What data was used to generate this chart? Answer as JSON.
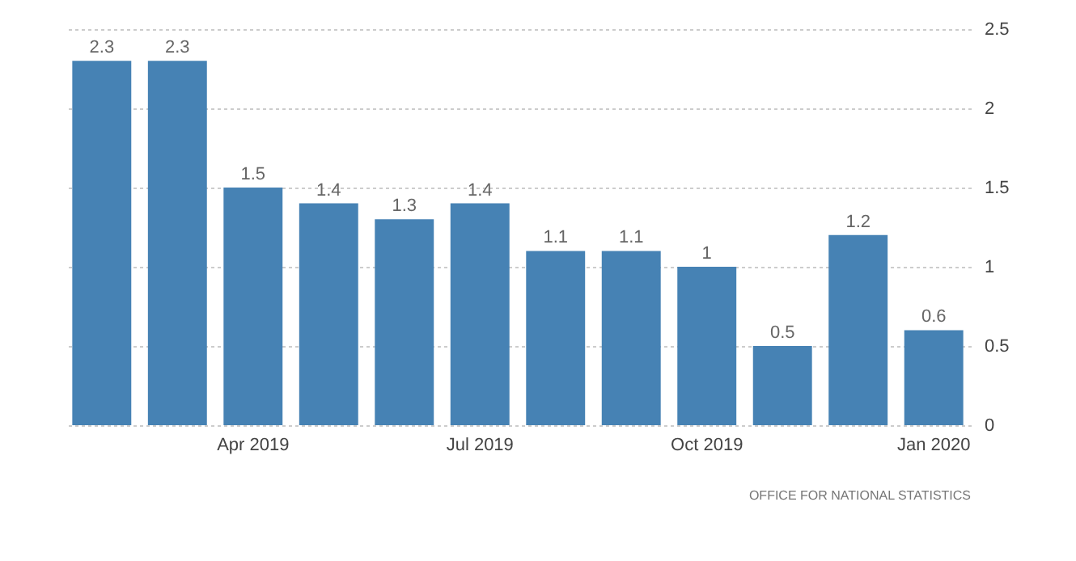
{
  "chart_data": {
    "type": "bar",
    "categories": [
      null,
      null,
      "Apr 2019",
      null,
      null,
      "Jul 2019",
      null,
      null,
      "Oct 2019",
      null,
      null,
      "Jan 2020"
    ],
    "values": [
      2.3,
      2.3,
      1.5,
      1.4,
      1.3,
      1.4,
      1.1,
      1.1,
      1,
      0.5,
      1.2,
      0.6
    ],
    "color": "#4682b4",
    "ylim": [
      0,
      2.5
    ],
    "yticks": [
      0,
      0.5,
      1,
      1.5,
      2,
      2.5
    ],
    "grid": "y",
    "data_labels": true,
    "annotations": [
      "OFFICE FOR NATIONAL STATISTICS"
    ]
  }
}
